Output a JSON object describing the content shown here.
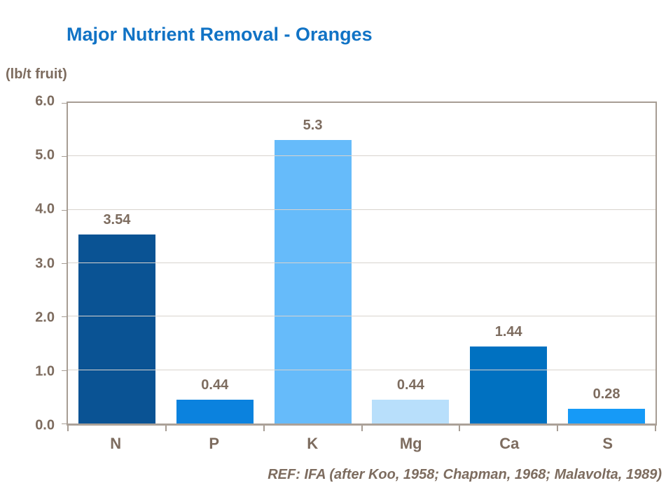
{
  "title": "Major Nutrient Removal - Oranges",
  "unit_label": "(lb/t fruit)",
  "footer_ref": "REF: IFA (after Koo, 1958; Chapman, 1968; Malavolta, 1989)",
  "colors": {
    "title": "#1173C5",
    "text": "#7D6C5F",
    "frame": "#A79D94",
    "gridline": "#D8D3CE"
  },
  "chart_data": {
    "type": "bar",
    "title": "Major Nutrient Removal - Oranges",
    "categories": [
      "N",
      "P",
      "K",
      "Mg",
      "Ca",
      "S"
    ],
    "values": [
      3.54,
      0.44,
      5.3,
      0.44,
      1.44,
      0.28
    ],
    "value_labels": [
      "3.54",
      "0.44",
      "5.3",
      "0.44",
      "1.44",
      "0.28"
    ],
    "bar_colors": [
      "#0A5394",
      "#0B82DE",
      "#66BBFA",
      "#B8DFFB",
      "#0071C1",
      "#169AF7"
    ],
    "xlabel": "",
    "ylabel": "(lb/t fruit)",
    "ylim": [
      0,
      6
    ],
    "yticks": [
      0.0,
      1.0,
      2.0,
      3.0,
      4.0,
      5.0,
      6.0
    ],
    "ytick_labels": [
      "0.0",
      "1.0",
      "2.0",
      "3.0",
      "4.0",
      "5.0",
      "6.0"
    ],
    "grid": true,
    "legend": false,
    "annotation": "REF: IFA (after Koo, 1958; Chapman, 1968; Malavolta, 1989)"
  }
}
